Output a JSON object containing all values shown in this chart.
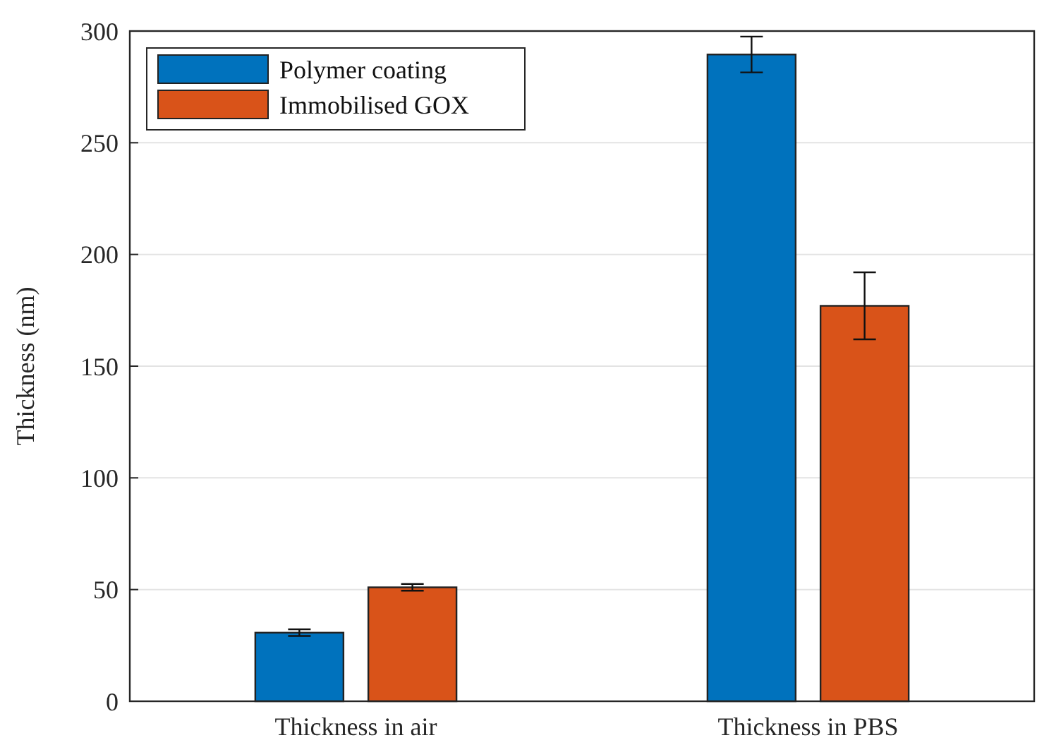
{
  "chart_data": {
    "type": "bar",
    "categories": [
      "Thickness in air",
      "Thickness in PBS"
    ],
    "ylabel": "Thickness (nm)",
    "ylim": [
      0,
      300
    ],
    "yticks": [
      0,
      50,
      100,
      150,
      200,
      250,
      300
    ],
    "grid": "y",
    "legend": "top left",
    "series": [
      {
        "name": "Polymer coating",
        "color": "#0072bd",
        "values": [
          30.7,
          289.5
        ],
        "errors": [
          1.5,
          8
        ]
      },
      {
        "name": "Immobilised GOX",
        "color": "#d95319",
        "values": [
          51,
          177
        ],
        "errors": [
          1.5,
          15
        ]
      }
    ]
  }
}
